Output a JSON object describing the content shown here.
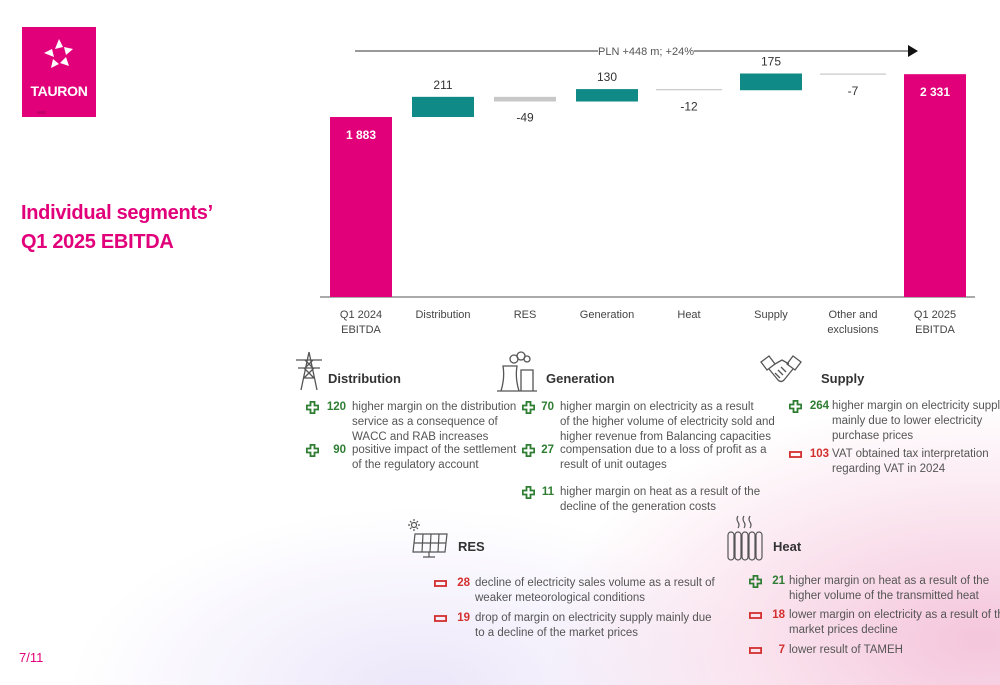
{
  "brand": {
    "logo_text": "TAURON",
    "color": "#e2007a"
  },
  "title": {
    "line1": "Individual segments’",
    "line2": "Q1 2025 EBITDA"
  },
  "page_number": "7/11",
  "chart_data": {
    "type": "waterfall",
    "unit": "PLN m",
    "annotation": "PLN +448 m; +24%",
    "categories": [
      "Q1 2024\nEBITDA",
      "Distribution",
      "RES",
      "Generation",
      "Heat",
      "Supply",
      "Other and\nexclusions",
      "Q1 2025\nEBITDA"
    ],
    "values": [
      1883,
      211,
      -49,
      130,
      -12,
      175,
      -7,
      2331
    ],
    "labels": [
      "1 883",
      "211",
      "-49",
      "130",
      "-12",
      "175",
      "-7",
      "2 331"
    ],
    "kinds": [
      "total",
      "delta",
      "delta",
      "delta",
      "delta",
      "delta",
      "delta",
      "total"
    ],
    "colors": [
      "#e2007a",
      "#0f8a86",
      "#c8c8c8",
      "#0f8a86",
      "#c8c8c8",
      "#0f8a86",
      "#c8c8c8",
      "#e2007a"
    ]
  },
  "segments": {
    "distribution": {
      "title": "Distribution",
      "icon": "power-pylon-icon",
      "items": [
        {
          "sign": "plus",
          "value": "120",
          "text": [
            "higher margin on the distribution",
            "service as a consequence of",
            "WACC and RAB increases"
          ]
        },
        {
          "sign": "plus",
          "value": "90",
          "text": [
            "positive impact of the settlement",
            "of the regulatory account"
          ]
        }
      ]
    },
    "generation": {
      "title": "Generation",
      "icon": "power-plant-icon",
      "items": [
        {
          "sign": "plus",
          "value": "70",
          "text": [
            "higher margin on electricity as a result",
            "of the higher volume of electricity sold and",
            "higher revenue from Balancing capacities"
          ]
        },
        {
          "sign": "plus",
          "value": "27",
          "text": [
            "compensation due to a loss of profit as a",
            "result of unit outages"
          ]
        },
        {
          "sign": "plus",
          "value": "11",
          "text": [
            "higher margin on heat as a result of the",
            "decline of the generation costs"
          ]
        }
      ]
    },
    "supply": {
      "title": "Supply",
      "icon": "handshake-icon",
      "items": [
        {
          "sign": "plus",
          "value": "264",
          "text": [
            "higher margin on electricity supply",
            "mainly due to lower electricity",
            "purchase prices"
          ]
        },
        {
          "sign": "minus",
          "value": "103",
          "text": [
            "VAT obtained tax interpretation",
            "regarding VAT in 2024"
          ]
        }
      ]
    },
    "res": {
      "title": "RES",
      "icon": "solar-panel-icon",
      "items": [
        {
          "sign": "minus",
          "value": "28",
          "text": [
            "decline of electricity sales volume as a result of",
            "weaker meteorological conditions"
          ]
        },
        {
          "sign": "minus",
          "value": "19",
          "text": [
            "drop of margin on electricity supply mainly due",
            "to a decline of the market prices"
          ]
        }
      ]
    },
    "heat": {
      "title": "Heat",
      "icon": "radiator-icon",
      "items": [
        {
          "sign": "plus",
          "value": "21",
          "text": [
            "higher margin on heat as a result of the",
            "higher volume of the transmitted heat"
          ]
        },
        {
          "sign": "minus",
          "value": "18",
          "text": [
            "lower margin on electricity as a result of the",
            "market prices decline"
          ]
        },
        {
          "sign": "minus",
          "value": "7",
          "text": [
            "lower result of TAMEH"
          ]
        }
      ]
    }
  }
}
